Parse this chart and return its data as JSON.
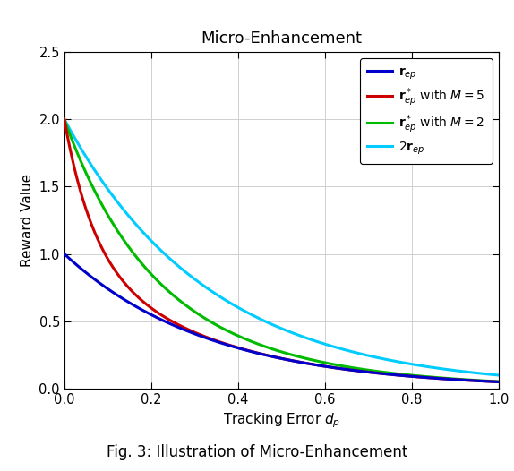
{
  "title": "Micro-Enhancement",
  "xlabel": "Tracking Error $d_p$",
  "ylabel": "Reward Value",
  "xlim": [
    0,
    1
  ],
  "ylim": [
    0,
    2.5
  ],
  "figcaption": "Fig. 3: Illustration of Micro-Enhancement",
  "k": 3.0,
  "M_red": 5,
  "M_green": 2,
  "colors": {
    "blue": "#0000CC",
    "red": "#CC0000",
    "green": "#00BB00",
    "cyan": "#00CCFF"
  },
  "yticks": [
    0,
    0.5,
    1.0,
    1.5,
    2.0,
    2.5
  ],
  "xticks": [
    0,
    0.2,
    0.4,
    0.6,
    0.8,
    1.0
  ],
  "linewidth": 2.2
}
